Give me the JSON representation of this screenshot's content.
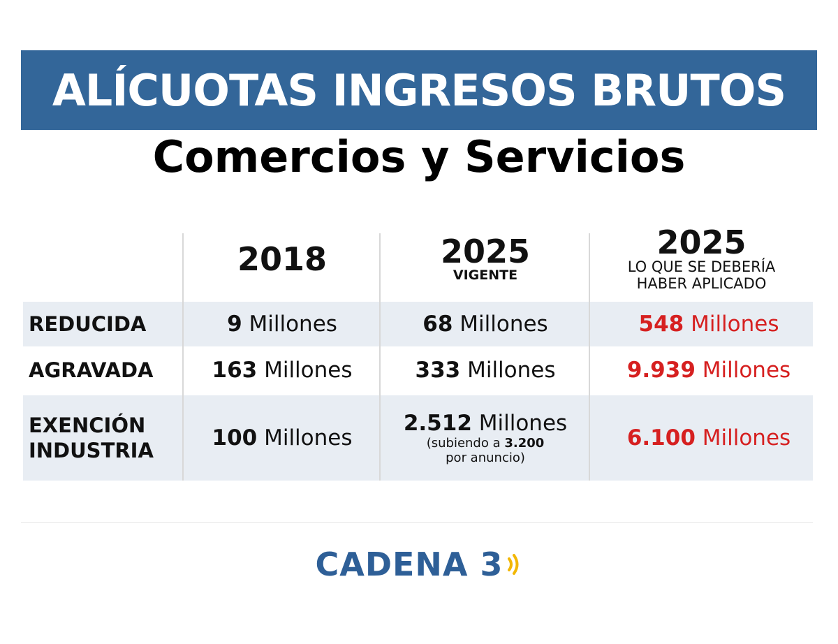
{
  "title": "ALÍCUOTAS INGRESOS BRUTOS",
  "subtitle": "Comercios y Servicios",
  "columns": [
    {
      "year": "2018",
      "sub": ""
    },
    {
      "year": "2025",
      "sub": "VIGENTE"
    },
    {
      "year": "2025",
      "sub_line1": "LO QUE SE DEBERÍA",
      "sub_line2": "HABER APLICADO"
    }
  ],
  "unit": "Millones",
  "rows": [
    {
      "label": "REDUCIDA",
      "v2018": "9",
      "v2025": "68",
      "v2025_should": "548"
    },
    {
      "label": "AGRAVADA",
      "v2018": "163",
      "v2025": "333",
      "v2025_should": "9.939"
    },
    {
      "label_line1": "EXENCIÓN",
      "label_line2": "INDUSTRIA",
      "v2018": "100",
      "v2025": "2.512",
      "note_prefix": "(subiendo a",
      "note_value": "3.200",
      "note_line2": "por anuncio)",
      "v2025_should": "6.100"
    }
  ],
  "logo": {
    "text": "CADENA 3",
    "icon": "radio-waves-icon"
  },
  "colors": {
    "banner": "#336699",
    "highlight": "#d62020",
    "shaded_row": "#e8edf3",
    "logo": "#2e5f97",
    "logo_waves": "#f2b705"
  }
}
